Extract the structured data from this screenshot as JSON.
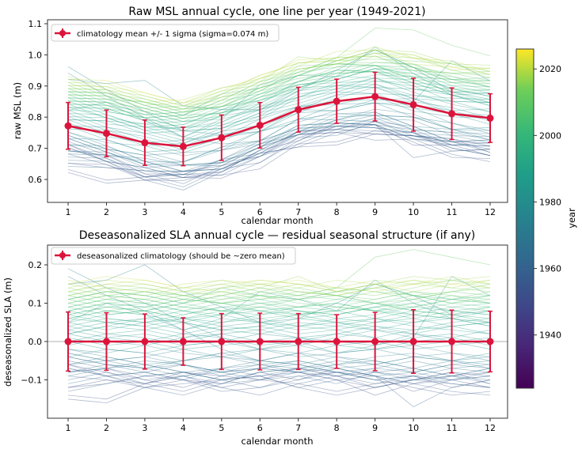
{
  "chart_data": [
    {
      "type": "line",
      "title": "Raw MSL annual cycle, one line per year (1949-2021)",
      "xlabel": "calendar month",
      "ylabel": "raw MSL (m)",
      "x": [
        1,
        2,
        3,
        4,
        5,
        6,
        7,
        8,
        9,
        10,
        11,
        12
      ],
      "xticks": [
        "1",
        "2",
        "3",
        "4",
        "5",
        "6",
        "7",
        "8",
        "9",
        "10",
        "11",
        "12"
      ],
      "yticks": [
        "0.6",
        "0.7",
        "0.8",
        "0.9",
        "1.0",
        "1.1"
      ],
      "ylim": [
        0.535,
        1.115
      ],
      "legend": "climatology mean +/- 1 sigma (sigma=0.074 m)",
      "legend_position": "upper-left",
      "climatology_mean": [
        0.772,
        0.748,
        0.718,
        0.706,
        0.734,
        0.774,
        0.824,
        0.851,
        0.866,
        0.84,
        0.811,
        0.797
      ],
      "climatology_sigma": [
        0.075,
        0.075,
        0.073,
        0.062,
        0.073,
        0.073,
        0.072,
        0.071,
        0.078,
        0.085,
        0.083,
        0.078
      ],
      "yearly_lines": "climatology_mean + deseasonalized SLA per year",
      "color": "#dc143c"
    },
    {
      "type": "line",
      "title": "Deseasonalized SLA annual cycle — residual seasonal structure (if any)",
      "xlabel": "calendar month",
      "ylabel": "deseasonalized SLA (m)",
      "x": [
        1,
        2,
        3,
        4,
        5,
        6,
        7,
        8,
        9,
        10,
        11,
        12
      ],
      "xticks": [
        "1",
        "2",
        "3",
        "4",
        "5",
        "6",
        "7",
        "8",
        "9",
        "10",
        "11",
        "12"
      ],
      "yticks": [
        "−0.1",
        "0.0",
        "0.1",
        "0.2"
      ],
      "ylim": [
        -0.2,
        0.265
      ],
      "legend": "deseasonalized climatology (should be ~zero mean)",
      "legend_position": "upper-left",
      "climatology_mean": [
        0,
        0,
        0,
        0,
        0,
        0,
        0,
        0,
        0,
        0,
        0,
        0
      ],
      "climatology_sigma": [
        0.077,
        0.075,
        0.072,
        0.062,
        0.073,
        0.074,
        0.073,
        0.07,
        0.076,
        0.083,
        0.082,
        0.079
      ],
      "zero_line": true,
      "color": "#dc143c"
    }
  ],
  "colorbar": {
    "label": "year",
    "colormap": "viridis",
    "range": [
      1924,
      2026
    ],
    "ticks": [
      "1940",
      "1960",
      "1980",
      "2000",
      "2020"
    ]
  },
  "years": {
    "start": 1949,
    "sla": [
      [
        -0.12,
        -0.1,
        -0.11,
        -0.08,
        -0.09,
        -0.1,
        -0.07,
        -0.09,
        -0.12,
        -0.1,
        -0.08,
        -0.11
      ],
      [
        -0.06,
        -0.09,
        -0.12,
        -0.1,
        -0.11,
        -0.08,
        -0.1,
        -0.07,
        -0.09,
        -0.13,
        -0.1,
        -0.12
      ],
      [
        -0.14,
        -0.15,
        -0.11,
        -0.09,
        -0.12,
        -0.1,
        -0.11,
        -0.13,
        -0.11,
        -0.09,
        -0.12,
        -0.1
      ],
      [
        -0.08,
        -0.07,
        -0.1,
        -0.12,
        -0.09,
        -0.07,
        -0.08,
        -0.1,
        -0.14,
        -0.11,
        -0.09,
        -0.08
      ],
      [
        -0.12,
        -0.11,
        -0.09,
        -0.1,
        -0.13,
        -0.12,
        -0.09,
        -0.08,
        -0.1,
        -0.12,
        -0.14,
        -0.13
      ],
      [
        -0.15,
        -0.16,
        -0.12,
        -0.11,
        -0.1,
        -0.09,
        -0.12,
        -0.14,
        -0.12,
        -0.1,
        -0.11,
        -0.12
      ],
      [
        -0.07,
        -0.09,
        -0.08,
        -0.1,
        -0.12,
        -0.14,
        -0.11,
        -0.09,
        -0.08,
        -0.09,
        -0.1,
        -0.09
      ],
      [
        -0.1,
        -0.08,
        -0.11,
        -0.13,
        -0.1,
        -0.09,
        -0.12,
        -0.1,
        -0.09,
        -0.11,
        -0.13,
        -0.14
      ],
      [
        -0.06,
        -0.08,
        -0.1,
        -0.09,
        -0.07,
        -0.09,
        -0.08,
        -0.1,
        -0.12,
        -0.1,
        -0.09,
        -0.07
      ],
      [
        -0.13,
        -0.11,
        -0.09,
        -0.08,
        -0.1,
        -0.12,
        -0.1,
        -0.08,
        -0.09,
        -0.17,
        -0.12,
        -0.1
      ],
      [
        -0.09,
        -0.1,
        -0.12,
        -0.14,
        -0.11,
        -0.08,
        -0.07,
        -0.09,
        -0.11,
        -0.1,
        -0.08,
        -0.09
      ],
      [
        -0.05,
        -0.07,
        -0.09,
        -0.08,
        -0.1,
        -0.09,
        -0.07,
        -0.08,
        -0.1,
        -0.09,
        -0.11,
        -0.12
      ],
      [
        -0.08,
        -0.06,
        -0.07,
        -0.09,
        -0.11,
        -0.1,
        -0.08,
        -0.07,
        -0.09,
        -0.11,
        -0.1,
        -0.08
      ],
      [
        -0.11,
        -0.09,
        -0.08,
        -0.06,
        -0.08,
        -0.1,
        -0.09,
        -0.11,
        -0.08,
        -0.07,
        -0.09,
        -0.1
      ],
      [
        -0.04,
        -0.06,
        -0.08,
        -0.1,
        -0.07,
        -0.06,
        -0.08,
        -0.09,
        -0.07,
        -0.08,
        -0.1,
        -0.09
      ],
      [
        -0.07,
        -0.09,
        -0.11,
        -0.09,
        -0.08,
        -0.07,
        -0.06,
        -0.08,
        -0.1,
        -0.09,
        -0.07,
        -0.06
      ],
      [
        -0.09,
        -0.07,
        -0.06,
        -0.08,
        -0.1,
        -0.08,
        -0.07,
        -0.06,
        -0.08,
        -0.1,
        -0.09,
        -0.11
      ],
      [
        -0.03,
        -0.05,
        -0.07,
        -0.06,
        -0.08,
        -0.07,
        -0.05,
        -0.07,
        -0.09,
        -0.08,
        -0.06,
        -0.07
      ],
      [
        -0.06,
        -0.04,
        -0.06,
        -0.08,
        -0.07,
        -0.05,
        -0.06,
        -0.08,
        -0.07,
        -0.05,
        -0.07,
        -0.08
      ],
      [
        -0.08,
        -0.07,
        -0.05,
        -0.06,
        -0.09,
        -0.07,
        -0.08,
        -0.06,
        -0.05,
        -0.07,
        -0.09,
        -0.07
      ],
      [
        -0.04,
        -0.06,
        -0.07,
        -0.05,
        -0.04,
        -0.06,
        -0.07,
        -0.05,
        -0.06,
        -0.08,
        -0.06,
        -0.05
      ],
      [
        -0.06,
        -0.05,
        -0.04,
        -0.06,
        -0.08,
        -0.06,
        -0.05,
        -0.07,
        -0.06,
        -0.04,
        -0.05,
        -0.07
      ],
      [
        -0.02,
        -0.04,
        -0.06,
        -0.05,
        -0.03,
        -0.05,
        -0.06,
        -0.04,
        -0.05,
        -0.07,
        -0.05,
        -0.04
      ],
      [
        0.17,
        0.12,
        0.08,
        0.03,
        -0.02,
        -0.05,
        -0.03,
        -0.06,
        -0.04,
        -0.03,
        -0.05,
        -0.06
      ],
      [
        -0.03,
        -0.05,
        -0.04,
        -0.02,
        -0.04,
        -0.05,
        -0.03,
        -0.04,
        -0.06,
        -0.04,
        -0.03,
        -0.05
      ],
      [
        0.15,
        0.16,
        0.2,
        0.13,
        0.09,
        0.05,
        0.06,
        0.1,
        0.15,
        0.12,
        0.07,
        0.08
      ],
      [
        -0.04,
        -0.02,
        -0.03,
        -0.05,
        -0.03,
        -0.02,
        -0.04,
        -0.03,
        -0.02,
        -0.04,
        -0.05,
        -0.03
      ],
      [
        0.19,
        0.14,
        0.1,
        0.05,
        0.01,
        -0.02,
        0.0,
        -0.03,
        -0.01,
        0.02,
        0.0,
        -0.02
      ],
      [
        -0.02,
        -0.03,
        -0.01,
        -0.03,
        -0.04,
        -0.02,
        -0.01,
        -0.03,
        -0.02,
        -0.01,
        -0.03,
        -0.04
      ],
      [
        0.0,
        -0.02,
        -0.03,
        -0.01,
        0.0,
        -0.02,
        -0.03,
        -0.01,
        0.0,
        -0.02,
        -0.01,
        0.0
      ],
      [
        -0.01,
        0.01,
        0.0,
        -0.02,
        -0.01,
        0.0,
        0.01,
        -0.01,
        -0.02,
        0.0,
        0.01,
        -0.01
      ],
      [
        0.02,
        0.0,
        -0.01,
        0.01,
        0.02,
        0.0,
        -0.01,
        0.01,
        0.03,
        0.01,
        0.17,
        0.12
      ],
      [
        0.0,
        0.02,
        0.01,
        -0.01,
        0.0,
        0.02,
        0.01,
        0.0,
        -0.01,
        0.01,
        0.02,
        0.0
      ],
      [
        0.01,
        -0.01,
        0.0,
        0.02,
        0.01,
        -0.01,
        0.0,
        0.02,
        0.01,
        -0.01,
        0.0,
        0.01
      ],
      [
        0.03,
        0.01,
        0.02,
        0.0,
        0.02,
        0.03,
        0.01,
        0.02,
        0.04,
        0.02,
        0.01,
        0.03
      ],
      [
        0.05,
        0.1,
        0.07,
        0.03,
        0.06,
        0.13,
        0.11,
        0.08,
        0.16,
        0.1,
        0.06,
        0.05
      ],
      [
        0.02,
        0.04,
        0.03,
        0.01,
        0.03,
        0.04,
        0.02,
        0.03,
        0.01,
        0.03,
        0.04,
        0.02
      ],
      [
        0.04,
        0.02,
        0.03,
        0.05,
        0.03,
        0.02,
        0.04,
        0.05,
        0.03,
        0.02,
        0.04,
        0.05
      ],
      [
        0.03,
        0.05,
        0.04,
        0.02,
        0.04,
        0.05,
        0.03,
        0.04,
        0.06,
        0.04,
        0.03,
        0.02
      ],
      [
        0.05,
        0.03,
        0.05,
        0.06,
        0.04,
        0.03,
        0.05,
        0.04,
        0.03,
        0.05,
        0.06,
        0.04
      ],
      [
        0.02,
        0.04,
        0.06,
        0.05,
        0.03,
        0.04,
        0.06,
        0.05,
        0.04,
        0.03,
        0.05,
        0.06
      ],
      [
        0.06,
        0.05,
        0.04,
        0.06,
        0.07,
        0.05,
        0.04,
        0.06,
        0.05,
        0.07,
        0.06,
        0.04
      ],
      [
        0.04,
        0.06,
        0.05,
        0.03,
        0.05,
        0.06,
        0.04,
        0.03,
        0.05,
        0.06,
        0.04,
        0.05
      ],
      [
        0.07,
        0.05,
        0.06,
        0.08,
        0.06,
        0.05,
        0.07,
        0.08,
        0.06,
        0.05,
        0.07,
        0.06
      ],
      [
        0.05,
        0.07,
        0.08,
        0.06,
        0.05,
        0.07,
        0.08,
        0.06,
        0.07,
        0.09,
        0.08,
        0.07
      ],
      [
        0.08,
        0.06,
        0.05,
        0.07,
        0.09,
        0.08,
        0.06,
        0.07,
        0.09,
        0.07,
        0.06,
        0.08
      ],
      [
        0.06,
        0.08,
        0.07,
        0.05,
        0.07,
        0.08,
        0.07,
        0.05,
        0.06,
        0.08,
        0.07,
        0.05
      ],
      [
        0.09,
        0.07,
        0.08,
        0.1,
        0.08,
        0.07,
        0.09,
        0.1,
        0.08,
        0.07,
        0.09,
        0.1
      ],
      [
        0.07,
        0.09,
        0.1,
        0.08,
        0.07,
        0.09,
        0.08,
        0.07,
        0.09,
        0.1,
        0.08,
        0.07
      ],
      [
        0.11,
        0.13,
        0.12,
        0.1,
        0.14,
        0.12,
        0.11,
        0.13,
        0.15,
        0.12,
        0.11,
        0.12
      ],
      [
        0.08,
        0.1,
        0.09,
        0.07,
        0.09,
        0.1,
        0.08,
        0.07,
        0.09,
        0.11,
        0.09,
        0.08
      ],
      [
        0.06,
        0.08,
        0.07,
        0.09,
        0.08,
        0.06,
        0.07,
        0.09,
        0.08,
        0.06,
        0.08,
        0.09
      ],
      [
        0.1,
        0.08,
        0.09,
        0.11,
        0.1,
        0.08,
        0.09,
        0.1,
        0.08,
        0.09,
        0.11,
        0.1
      ],
      [
        0.07,
        0.09,
        0.08,
        0.06,
        0.08,
        0.09,
        0.07,
        0.08,
        0.1,
        0.08,
        0.07,
        0.09
      ],
      [
        0.09,
        0.11,
        0.1,
        0.08,
        0.1,
        0.11,
        0.09,
        0.08,
        0.1,
        0.12,
        0.1,
        0.09
      ],
      [
        0.11,
        0.09,
        0.08,
        0.1,
        0.12,
        0.1,
        0.09,
        0.11,
        0.1,
        0.08,
        0.1,
        0.11
      ],
      [
        0.08,
        0.1,
        0.11,
        0.09,
        0.08,
        0.1,
        0.11,
        0.09,
        0.08,
        0.1,
        0.12,
        0.1
      ],
      [
        0.12,
        0.1,
        0.09,
        0.11,
        0.1,
        0.09,
        0.11,
        0.12,
        0.1,
        0.09,
        0.11,
        0.13
      ],
      [
        0.1,
        0.12,
        0.11,
        0.09,
        0.11,
        0.12,
        0.1,
        0.09,
        0.11,
        0.13,
        0.11,
        0.1
      ],
      [
        0.09,
        0.11,
        0.13,
        0.12,
        0.1,
        0.11,
        0.13,
        0.12,
        0.1,
        0.11,
        0.13,
        0.12
      ],
      [
        0.11,
        0.13,
        0.12,
        0.1,
        0.12,
        0.14,
        0.12,
        0.11,
        0.13,
        0.12,
        0.1,
        0.12
      ],
      [
        0.13,
        0.11,
        0.1,
        0.12,
        0.13,
        0.11,
        0.12,
        0.14,
        0.22,
        0.24,
        0.22,
        0.2
      ],
      [
        0.1,
        0.12,
        0.13,
        0.11,
        0.1,
        0.12,
        0.14,
        0.12,
        0.11,
        0.13,
        0.12,
        0.11
      ],
      [
        0.12,
        0.14,
        0.13,
        0.11,
        0.13,
        0.12,
        0.11,
        0.13,
        0.14,
        0.12,
        0.13,
        0.14
      ],
      [
        0.14,
        0.12,
        0.11,
        0.13,
        0.15,
        0.13,
        0.12,
        0.14,
        0.13,
        0.11,
        0.13,
        0.15
      ],
      [
        0.11,
        0.13,
        0.14,
        0.12,
        0.11,
        0.13,
        0.15,
        0.13,
        0.12,
        0.14,
        0.16,
        0.14
      ],
      [
        0.13,
        0.15,
        0.14,
        0.12,
        0.14,
        0.15,
        0.13,
        0.12,
        0.14,
        0.16,
        0.14,
        0.13
      ],
      [
        0.15,
        0.13,
        0.12,
        0.14,
        0.16,
        0.14,
        0.17,
        0.13,
        0.15,
        0.17,
        0.16,
        0.15
      ],
      [
        0.12,
        0.14,
        0.15,
        0.13,
        0.12,
        0.14,
        0.13,
        0.12,
        0.14,
        0.15,
        0.16,
        0.17
      ],
      [
        0.14,
        0.16,
        0.15,
        0.13,
        0.14,
        0.16,
        0.15,
        0.14,
        0.16,
        0.15,
        0.14,
        0.16
      ],
      [
        0.16,
        0.14,
        0.13,
        0.15,
        0.16,
        0.15,
        0.14,
        0.16,
        0.15,
        0.13,
        0.15,
        0.16
      ],
      [
        0.13,
        0.15,
        0.16,
        0.14,
        0.13,
        0.15,
        0.16,
        0.14,
        0.13,
        0.15,
        0.17,
        0.15
      ],
      [
        0.15,
        0.17,
        0.16,
        0.14,
        0.15,
        0.16,
        0.15,
        0.13,
        0.15,
        0.16,
        0.15,
        0.14
      ]
    ]
  }
}
